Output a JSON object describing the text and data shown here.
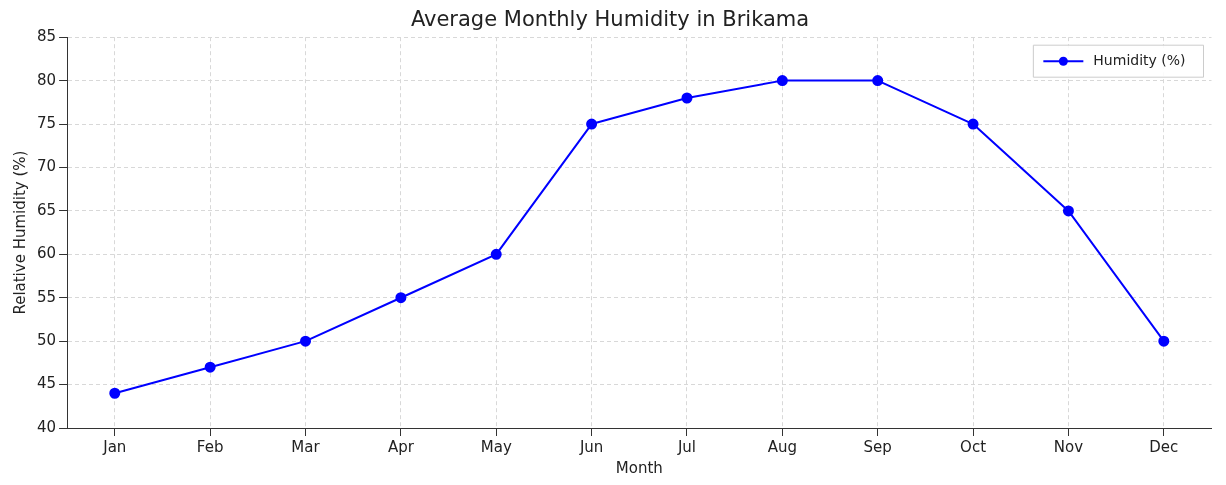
{
  "chart_data": {
    "type": "line",
    "title": "Average Monthly Humidity in Brikama",
    "xlabel": "Month",
    "ylabel": "Relative Humidity (%)",
    "categories": [
      "Jan",
      "Feb",
      "Mar",
      "Apr",
      "May",
      "Jun",
      "Jul",
      "Aug",
      "Sep",
      "Oct",
      "Nov",
      "Dec"
    ],
    "series": [
      {
        "name": "Humidity (%)",
        "color": "#0000ff",
        "values": [
          44,
          47,
          50,
          55,
          60,
          75,
          78,
          80,
          80,
          75,
          65,
          50
        ]
      }
    ],
    "ylim": [
      40,
      85
    ],
    "yticks": [
      40,
      45,
      50,
      55,
      60,
      65,
      70,
      75,
      80,
      85
    ],
    "grid": true,
    "legend": "top right",
    "marker": "circle",
    "line_style": "solid"
  }
}
